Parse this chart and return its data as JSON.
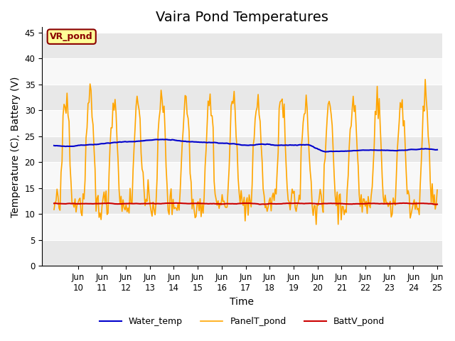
{
  "title": "Vaira Pond Temperatures",
  "xlabel": "Time",
  "ylabel": "Temperature (C), Battery (V)",
  "xlim_days": [
    9,
    25
  ],
  "ylim": [
    0,
    46
  ],
  "yticks": [
    0,
    5,
    10,
    15,
    20,
    25,
    30,
    35,
    40,
    45
  ],
  "xtick_days": [
    10,
    11,
    12,
    13,
    14,
    15,
    16,
    17,
    18,
    19,
    20,
    21,
    22,
    23,
    24,
    25
  ],
  "xtick_labels": [
    "Jun\n10",
    "Jun\n11",
    "Jun\n12",
    "Jun\n13",
    "Jun\n14",
    "Jun\n15",
    "Jun\n16",
    "Jun\n17",
    "Jun\n18",
    "Jun\n19",
    "Jun\n20",
    "Jun\n21",
    "Jun\n22",
    "Jun\n23",
    "Jun\n24",
    "Jun\n25"
  ],
  "water_color": "#0000CC",
  "panel_color": "#FFA500",
  "batt_color": "#CC0000",
  "annotation_text": "VR_pond",
  "annotation_bg": "#FFFF99",
  "annotation_border": "#8B0000",
  "legend_labels": [
    "Water_temp",
    "PanelT_pond",
    "BattV_pond"
  ],
  "band_colors": [
    "#E8E8E8",
    "#F8F8F8"
  ],
  "title_fontsize": 14,
  "axis_fontsize": 10,
  "tick_fontsize": 8.5
}
